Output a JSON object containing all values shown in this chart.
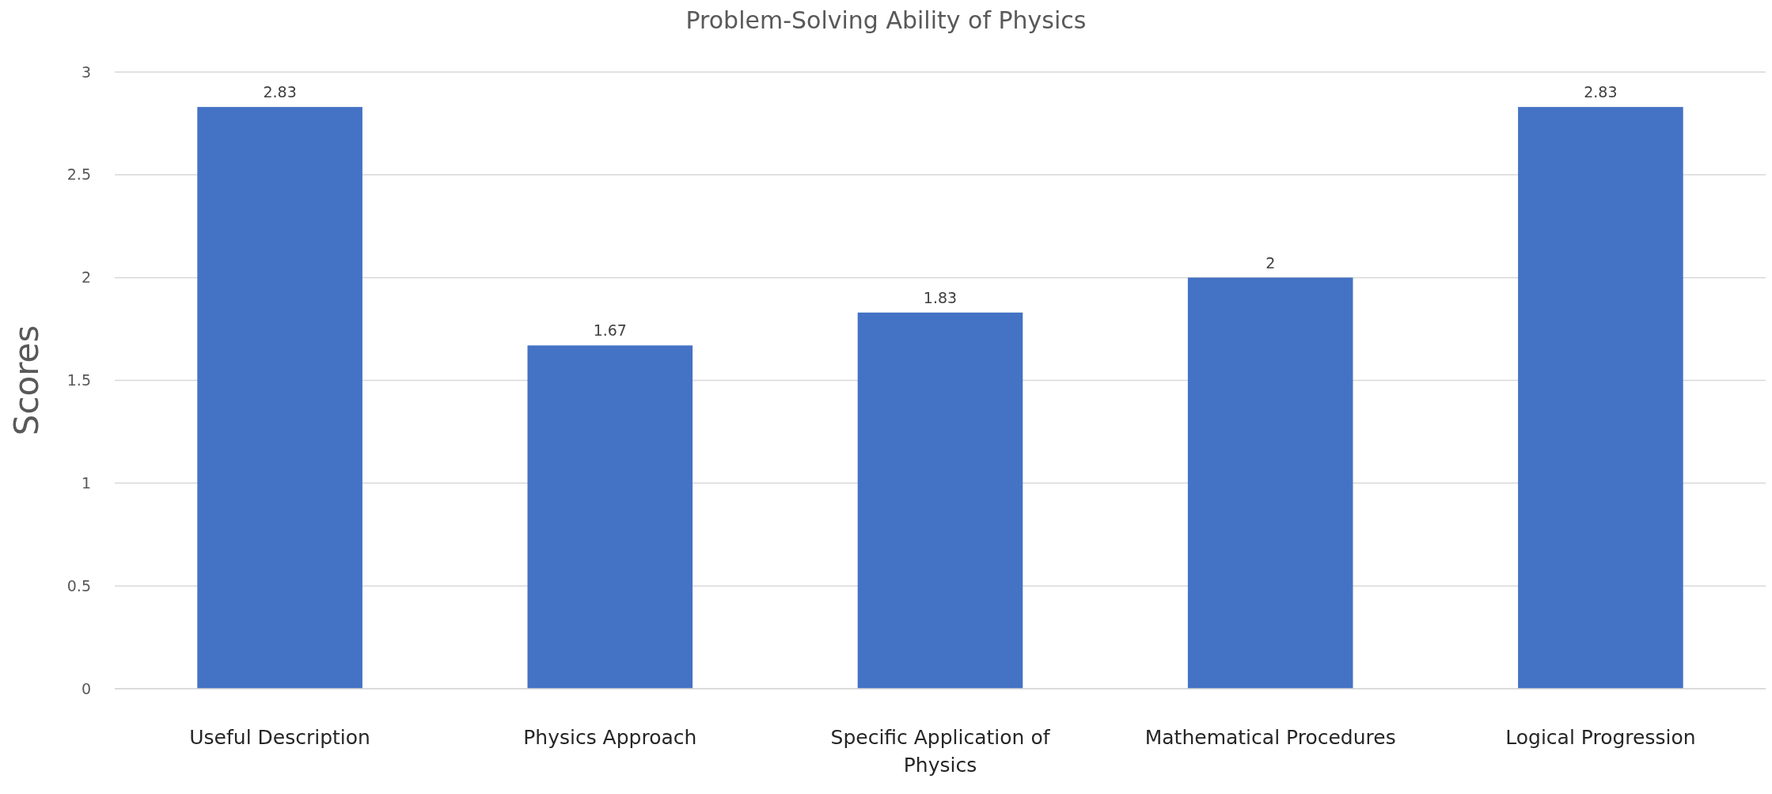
{
  "chart_data": {
    "type": "bar",
    "title": "Problem-Solving Ability of Physics",
    "ylabel": "Scores",
    "categories": [
      "Useful Description",
      "Physics Approach",
      "Specific Application of Physics",
      "Mathematical Procedures",
      "Logical Progression"
    ],
    "values": [
      2.83,
      1.67,
      1.83,
      2,
      2.83
    ],
    "color": "#4472c4",
    "ylim": [
      0,
      3
    ],
    "yticks": [
      0,
      0.5,
      1,
      1.5,
      2,
      2.5,
      3
    ],
    "grid": "y",
    "data_labels": true
  }
}
